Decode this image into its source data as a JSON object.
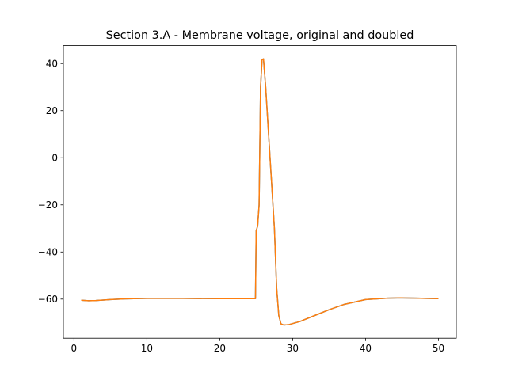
{
  "chart_data": {
    "type": "line",
    "title": "Section 3.A - Membrane voltage, original and doubled",
    "xlabel": "",
    "ylabel": "",
    "xlim": [
      -1.45,
      52.45
    ],
    "ylim": [
      -76.6,
      47.6
    ],
    "xticks": [
      0,
      10,
      20,
      30,
      40,
      50
    ],
    "yticks": [
      -60,
      -40,
      -20,
      0,
      20,
      40
    ],
    "xtick_labels": [
      "0",
      "10",
      "20",
      "30",
      "40",
      "50"
    ],
    "ytick_labels": [
      "−60",
      "−40",
      "−20",
      "0",
      "20",
      "40"
    ],
    "grid": false,
    "legend": "none",
    "series": [
      {
        "color": "#1f77b4",
        "x": [
          1,
          2,
          3,
          5,
          7,
          10,
          15,
          20,
          24,
          24.9,
          25.0,
          25.2,
          25.4,
          25.6,
          25.8,
          26.0,
          26.3,
          26.7,
          27.1,
          27.5,
          27.8,
          28.1,
          28.4,
          28.8,
          29.5,
          31,
          33,
          35,
          37,
          40,
          43,
          45,
          47,
          50
        ],
        "y": [
          -60.5,
          -60.7,
          -60.6,
          -60.2,
          -59.9,
          -59.7,
          -59.7,
          -59.8,
          -59.8,
          -59.8,
          -31,
          -29,
          -20,
          30,
          41.5,
          42,
          30,
          10,
          -10,
          -30,
          -55,
          -67,
          -70.5,
          -71,
          -70.8,
          -69.5,
          -67,
          -64.5,
          -62.3,
          -60.2,
          -59.6,
          -59.5,
          -59.6,
          -59.8
        ]
      },
      {
        "color": "#ff7f0e",
        "x": [
          1,
          2,
          3,
          5,
          7,
          10,
          15,
          20,
          24,
          24.9,
          25.0,
          25.2,
          25.4,
          25.6,
          25.8,
          26.0,
          26.3,
          26.7,
          27.1,
          27.5,
          27.8,
          28.1,
          28.4,
          28.8,
          29.5,
          31,
          33,
          35,
          37,
          40,
          43,
          45,
          47,
          50
        ],
        "y": [
          -60.5,
          -60.7,
          -60.6,
          -60.2,
          -59.9,
          -59.7,
          -59.7,
          -59.8,
          -59.8,
          -59.8,
          -31,
          -29,
          -20,
          30,
          41.5,
          42,
          30,
          10,
          -10,
          -30,
          -55,
          -67,
          -70.5,
          -71,
          -70.8,
          -69.5,
          -67,
          -64.5,
          -62.3,
          -60.2,
          -59.6,
          -59.5,
          -59.6,
          -59.8
        ]
      }
    ]
  }
}
